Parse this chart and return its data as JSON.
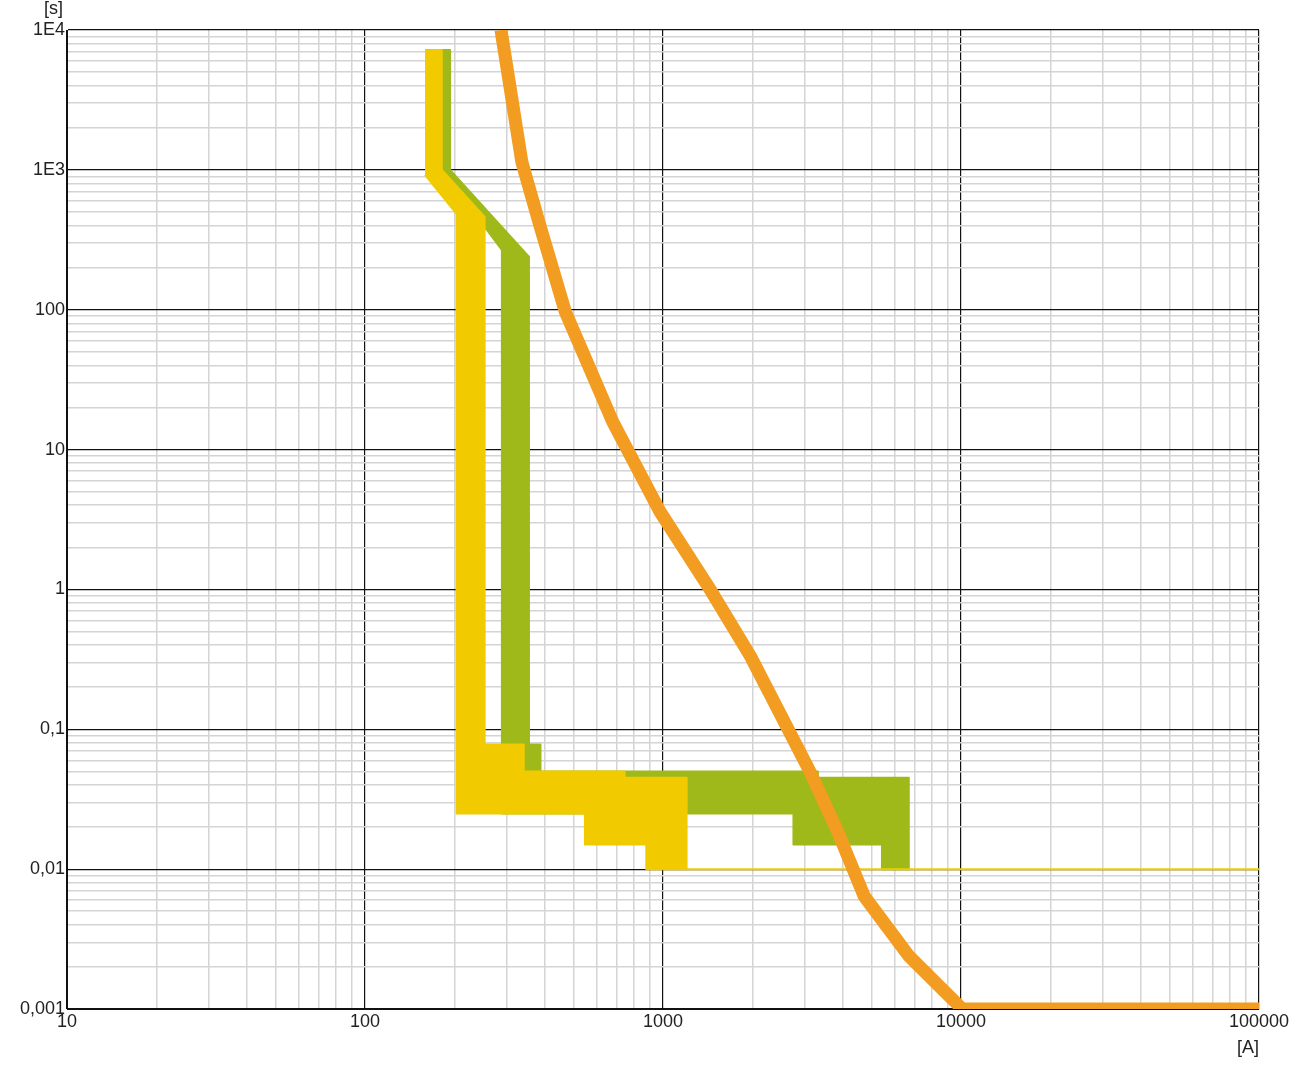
{
  "chart_data": {
    "type": "line",
    "xlabel": "[A]",
    "ylabel": "[s]",
    "log": "xy",
    "grid": true,
    "legend": false,
    "marker": "none",
    "line_style": "solid",
    "xlim": [
      10,
      100000
    ],
    "xticks": [
      10,
      100,
      1000,
      10000,
      100000
    ],
    "ylim": [
      0.001,
      10000
    ],
    "yticks": [
      {
        "value": 10000,
        "label": "1E4"
      },
      {
        "value": 1000,
        "label": "1E3"
      },
      100,
      10,
      1,
      {
        "value": 0.1,
        "label": "0,1"
      },
      {
        "value": 0.01,
        "label": "0,01"
      },
      {
        "value": 0.001,
        "label": "0,001"
      }
    ],
    "series": [
      {
        "type": "area",
        "color": "#a0b91a",
        "x": [
          181,
          193,
          193,
          355,
          355,
          388,
          388,
          3310,
          3310,
          6680,
          6680,
          5430,
          5430,
          2740,
          2740,
          288,
          288,
          181
        ],
        "values": [
          7200,
          7200,
          1000,
          239,
          0.078,
          0.078,
          0.05,
          0.05,
          0.045,
          0.045,
          0.01,
          0.01,
          0.015,
          0.015,
          0.025,
          0.025,
          268,
          1000
        ]
      },
      {
        "type": "area",
        "color": "#f1cb00",
        "x": [
          159,
          181,
          181,
          252,
          252,
          341,
          341,
          743,
          743,
          1200,
          1200,
          100000,
          879,
          879,
          547,
          547,
          203,
          203,
          159
        ],
        "values": [
          7200,
          7200,
          1000,
          461,
          0.078,
          0.078,
          0.05,
          0.05,
          0.045,
          0.045,
          0.01,
          0.01,
          0.01,
          0.015,
          0.015,
          0.025,
          0.025,
          485,
          920
        ]
      },
      {
        "color": "#f29c21",
        "x": [
          286,
          336,
          383,
          470,
          678,
          977,
          1452,
          1970,
          3110,
          3850,
          4735,
          6680,
          10100,
          100000
        ],
        "values": [
          10000,
          1140,
          426,
          97,
          15.8,
          3.6,
          0.97,
          0.33,
          0.05,
          0.0187,
          0.0064,
          0.0024,
          0.001,
          0.001
        ]
      }
    ]
  }
}
